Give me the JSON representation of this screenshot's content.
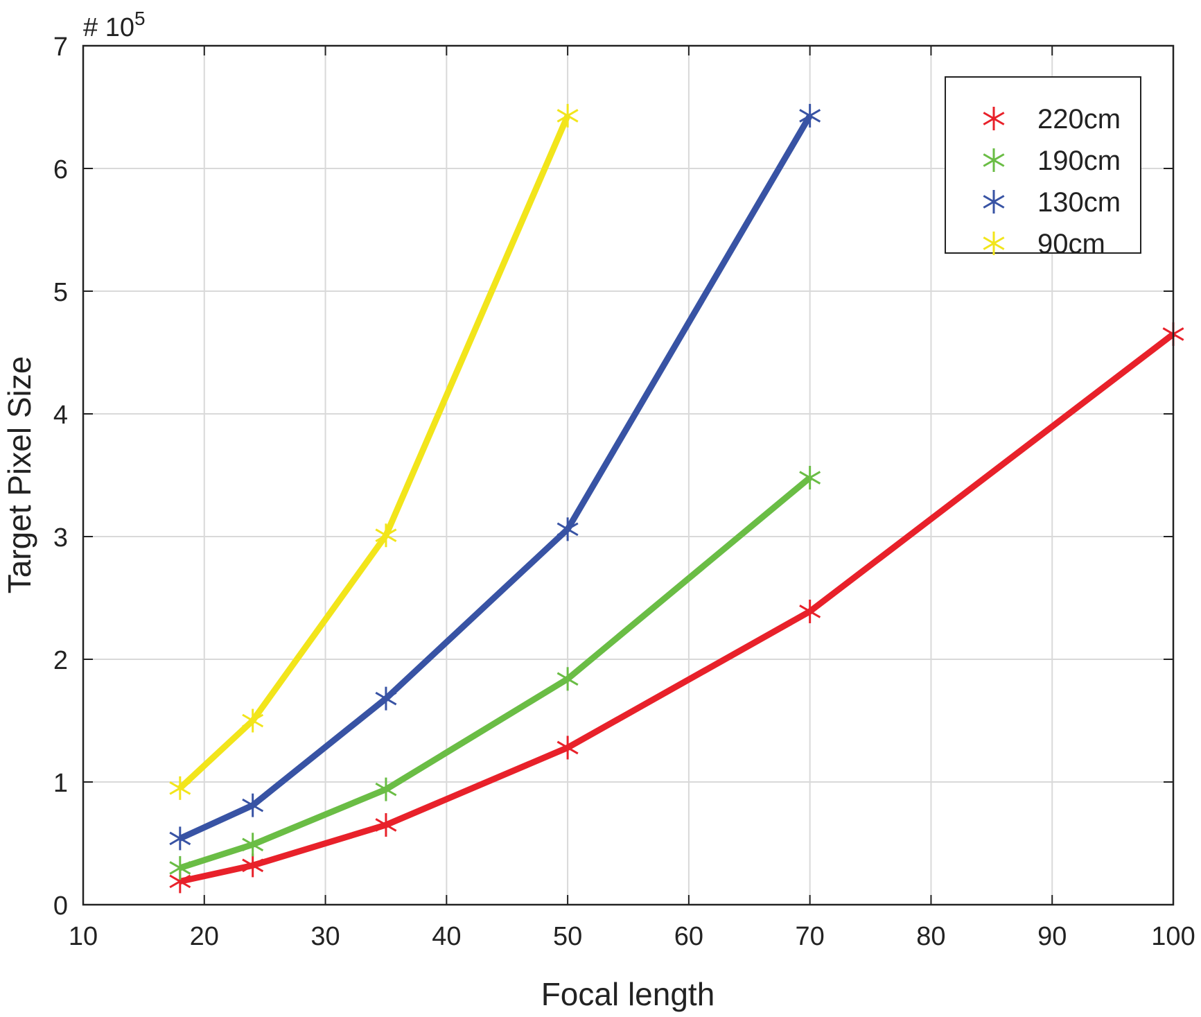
{
  "chart_data": {
    "type": "line",
    "xlabel": "Focal length",
    "ylabel": "Target Pixel Size",
    "y_multiplier_label": "# 10",
    "y_multiplier_exponent": "5",
    "xlim": [
      10,
      100
    ],
    "ylim": [
      0,
      7
    ],
    "xticks": [
      "10",
      "20",
      "30",
      "40",
      "50",
      "60",
      "70",
      "80",
      "90",
      "100"
    ],
    "yticks": [
      "0",
      "1",
      "2",
      "3",
      "4",
      "5",
      "6",
      "7"
    ],
    "grid": true,
    "legend_position": "top-right",
    "marker": "asterisk",
    "series": [
      {
        "name": "220cm",
        "color": "#e8212a",
        "x": [
          18,
          24,
          35,
          50,
          70,
          100
        ],
        "y": [
          0.19,
          0.32,
          0.65,
          1.28,
          2.39,
          4.65
        ]
      },
      {
        "name": "190cm",
        "color": "#6abd45",
        "x": [
          18,
          24,
          35,
          50,
          70
        ],
        "y": [
          0.3,
          0.49,
          0.94,
          1.84,
          3.48
        ]
      },
      {
        "name": "130cm",
        "color": "#3853a4",
        "x": [
          18,
          24,
          35,
          50,
          70
        ],
        "y": [
          0.54,
          0.81,
          1.68,
          3.06,
          6.43
        ]
      },
      {
        "name": "90cm",
        "color": "#f2e51b",
        "x": [
          18,
          24,
          35,
          50
        ],
        "y": [
          0.95,
          1.5,
          3.01,
          6.43
        ]
      }
    ]
  }
}
